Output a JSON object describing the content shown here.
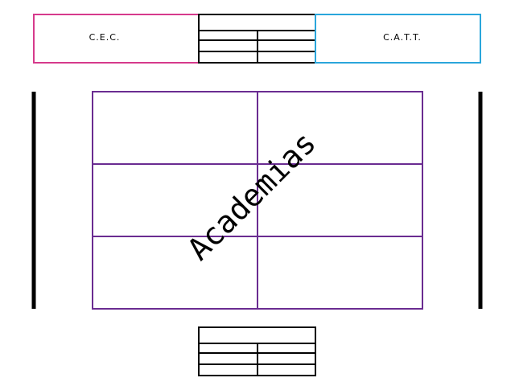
{
  "labels": {
    "left_box": "C.E.C.",
    "right_box": "C.A.T.T.",
    "diagonal": "Academias"
  },
  "colors": {
    "left_box": "#d63a8c",
    "right_box": "#2aa6db",
    "grid": "#6a2c91",
    "lines": "#000000"
  }
}
